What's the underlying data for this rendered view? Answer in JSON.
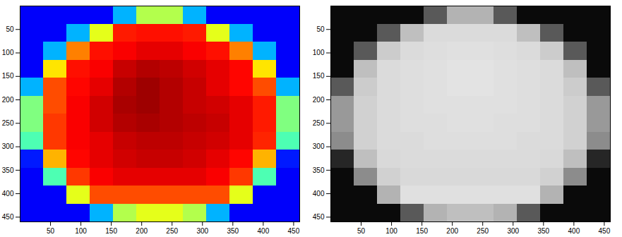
{
  "chart_data": [
    {
      "type": "heatmap",
      "color": "jet",
      "xlim": [
        0,
        460
      ],
      "ylim": [
        460,
        0
      ],
      "xticks": [
        50,
        100,
        150,
        200,
        250,
        300,
        350,
        400,
        450
      ],
      "yticks": [
        50,
        100,
        150,
        200,
        250,
        300,
        350,
        400,
        450
      ],
      "zlim": [
        0,
        1
      ],
      "cells": [
        [
          0.12,
          0.12,
          0.12,
          0.12,
          0.3,
          0.55,
          0.55,
          0.3,
          0.12,
          0.12,
          0.12,
          0.12
        ],
        [
          0.12,
          0.12,
          0.3,
          0.6,
          0.85,
          0.86,
          0.86,
          0.85,
          0.6,
          0.3,
          0.12,
          0.12
        ],
        [
          0.12,
          0.3,
          0.75,
          0.86,
          0.88,
          0.9,
          0.9,
          0.88,
          0.86,
          0.75,
          0.3,
          0.12
        ],
        [
          0.12,
          0.65,
          0.86,
          0.88,
          0.93,
          0.95,
          0.94,
          0.92,
          0.9,
          0.87,
          0.65,
          0.12
        ],
        [
          0.3,
          0.8,
          0.87,
          0.9,
          0.95,
          0.97,
          0.95,
          0.93,
          0.9,
          0.87,
          0.8,
          0.3
        ],
        [
          0.5,
          0.8,
          0.88,
          0.92,
          0.96,
          0.97,
          0.95,
          0.93,
          0.92,
          0.9,
          0.85,
          0.5
        ],
        [
          0.5,
          0.82,
          0.88,
          0.92,
          0.95,
          0.96,
          0.95,
          0.94,
          0.93,
          0.9,
          0.85,
          0.5
        ],
        [
          0.45,
          0.82,
          0.88,
          0.9,
          0.93,
          0.94,
          0.94,
          0.93,
          0.92,
          0.9,
          0.84,
          0.45
        ],
        [
          0.15,
          0.7,
          0.87,
          0.9,
          0.92,
          0.93,
          0.93,
          0.92,
          0.9,
          0.87,
          0.7,
          0.15
        ],
        [
          0.12,
          0.45,
          0.82,
          0.88,
          0.9,
          0.9,
          0.9,
          0.9,
          0.88,
          0.82,
          0.45,
          0.12
        ],
        [
          0.12,
          0.12,
          0.6,
          0.8,
          0.8,
          0.8,
          0.8,
          0.8,
          0.8,
          0.6,
          0.12,
          0.12
        ],
        [
          0.12,
          0.12,
          0.12,
          0.3,
          0.55,
          0.6,
          0.6,
          0.55,
          0.3,
          0.12,
          0.12,
          0.12
        ]
      ]
    },
    {
      "type": "heatmap",
      "color": "gray",
      "xlim": [
        0,
        460
      ],
      "ylim": [
        460,
        0
      ],
      "xticks": [
        50,
        100,
        150,
        200,
        250,
        300,
        350,
        400,
        450
      ],
      "yticks": [
        50,
        100,
        150,
        200,
        250,
        300,
        350,
        400,
        450
      ],
      "zlim": [
        0,
        1
      ],
      "cells": [
        [
          0.04,
          0.04,
          0.04,
          0.04,
          0.35,
          0.7,
          0.7,
          0.35,
          0.04,
          0.04,
          0.04,
          0.04
        ],
        [
          0.04,
          0.04,
          0.35,
          0.75,
          0.86,
          0.86,
          0.86,
          0.86,
          0.75,
          0.35,
          0.04,
          0.04
        ],
        [
          0.04,
          0.35,
          0.8,
          0.86,
          0.87,
          0.88,
          0.88,
          0.87,
          0.86,
          0.8,
          0.35,
          0.04
        ],
        [
          0.04,
          0.75,
          0.86,
          0.87,
          0.88,
          0.89,
          0.89,
          0.88,
          0.87,
          0.86,
          0.75,
          0.04
        ],
        [
          0.35,
          0.8,
          0.86,
          0.87,
          0.88,
          0.89,
          0.89,
          0.88,
          0.87,
          0.86,
          0.8,
          0.35
        ],
        [
          0.6,
          0.82,
          0.86,
          0.87,
          0.88,
          0.88,
          0.88,
          0.88,
          0.87,
          0.86,
          0.82,
          0.6
        ],
        [
          0.6,
          0.82,
          0.86,
          0.87,
          0.87,
          0.88,
          0.88,
          0.87,
          0.87,
          0.86,
          0.82,
          0.6
        ],
        [
          0.55,
          0.82,
          0.86,
          0.86,
          0.87,
          0.87,
          0.87,
          0.87,
          0.86,
          0.86,
          0.82,
          0.55
        ],
        [
          0.15,
          0.75,
          0.85,
          0.86,
          0.86,
          0.86,
          0.86,
          0.86,
          0.86,
          0.85,
          0.75,
          0.15
        ],
        [
          0.04,
          0.55,
          0.82,
          0.85,
          0.85,
          0.85,
          0.85,
          0.85,
          0.85,
          0.82,
          0.55,
          0.04
        ],
        [
          0.04,
          0.04,
          0.7,
          0.88,
          0.88,
          0.88,
          0.88,
          0.88,
          0.88,
          0.7,
          0.04,
          0.04
        ],
        [
          0.04,
          0.04,
          0.04,
          0.35,
          0.7,
          0.75,
          0.75,
          0.7,
          0.35,
          0.04,
          0.04,
          0.04
        ]
      ]
    }
  ]
}
